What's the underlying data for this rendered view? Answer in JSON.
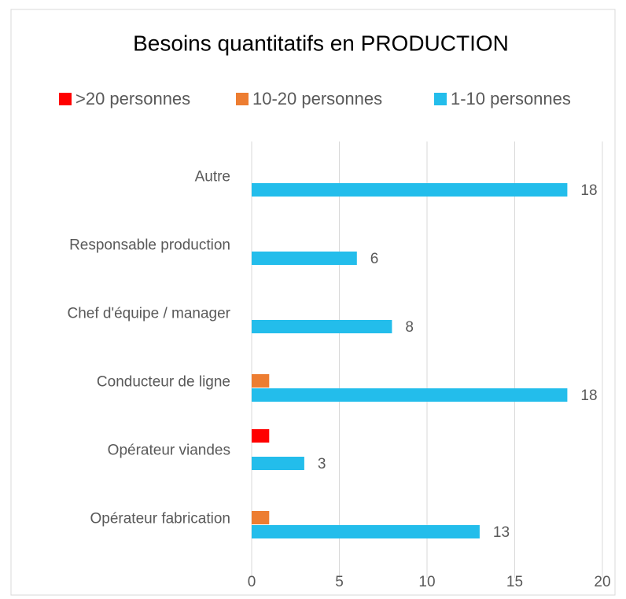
{
  "chart_data": {
    "type": "hbar",
    "title": "Besoins quantitatifs en PRODUCTION",
    "categories": [
      "Autre",
      "Responsable production",
      "Chef d'équipe / manager",
      "Conducteur de ligne",
      "Opérateur viandes",
      "Opérateur fabrication"
    ],
    "series": [
      {
        "name": ">20 personnes",
        "color": "#ff0000",
        "values": [
          null,
          null,
          null,
          null,
          1,
          null
        ]
      },
      {
        "name": "10-20 personnes",
        "color": "#ed7d31",
        "values": [
          null,
          null,
          null,
          1,
          null,
          1
        ]
      },
      {
        "name": "1-10 personnes",
        "color": "#23bdeb",
        "values": [
          18,
          6,
          8,
          18,
          3,
          13
        ],
        "data_labels": true
      }
    ],
    "xlim": [
      0,
      20
    ],
    "xticks": [
      0,
      5,
      10,
      15,
      20
    ],
    "grid": true,
    "legend": "top"
  }
}
